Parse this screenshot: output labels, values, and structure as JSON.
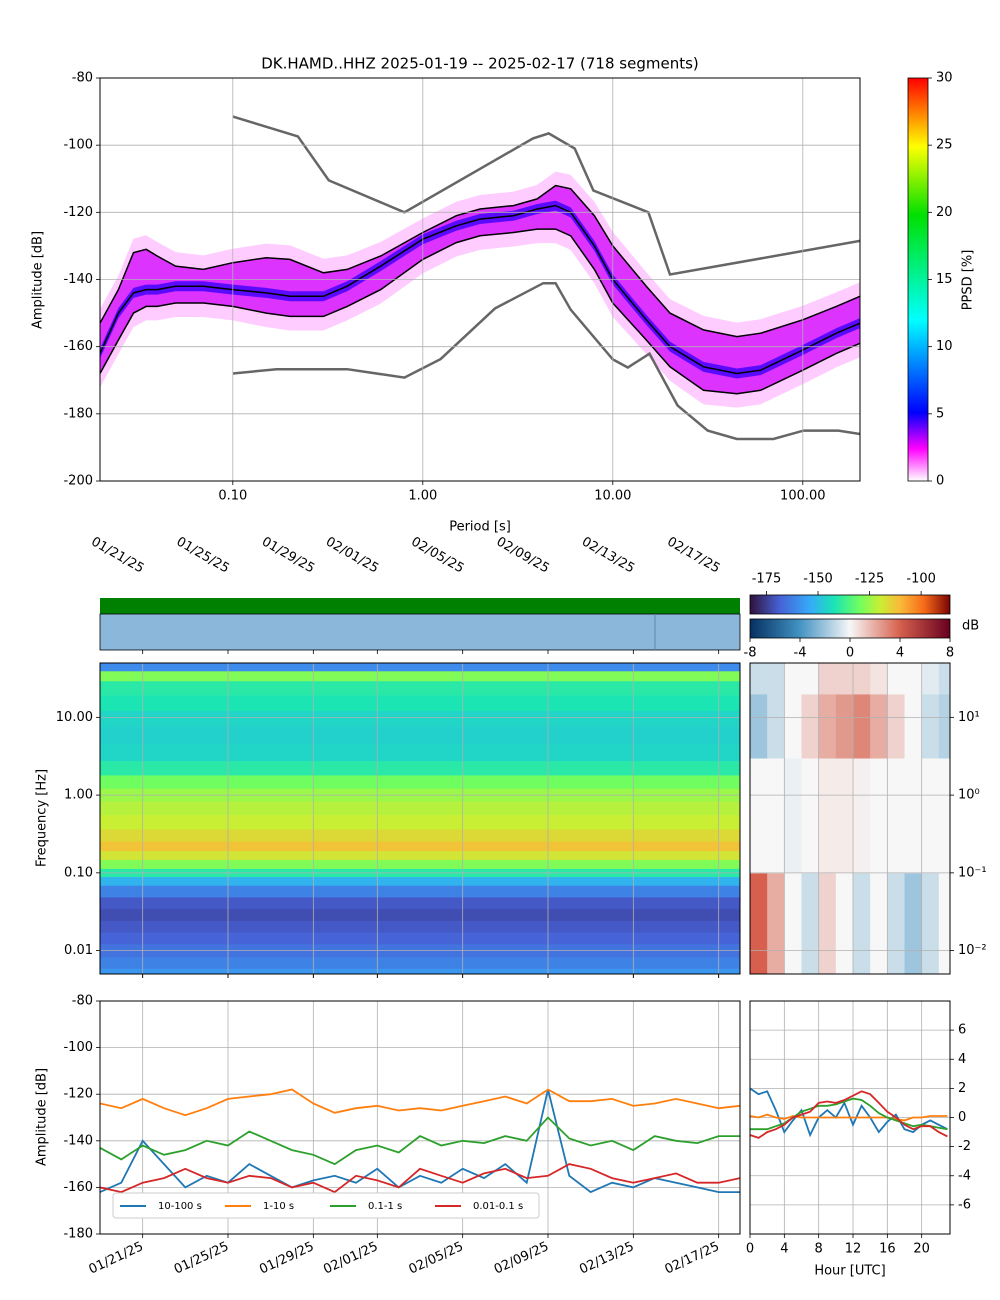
{
  "chart_data": [
    {
      "type": "ppsd",
      "title": "DK.HAMD..HHZ   2025-01-19 -- 2025-02-17  (718 segments)",
      "xlabel": "Period [s]",
      "ylabel": "Amplitude [dB]",
      "xscale": "log",
      "xlim": [
        0.02,
        200
      ],
      "xticks": [
        {
          "value": 0.1,
          "label": "0.10"
        },
        {
          "value": 1,
          "label": "1.00"
        },
        {
          "value": 10,
          "label": "10.00"
        },
        {
          "value": 100,
          "label": "100.00"
        }
      ],
      "ylim": [
        -200,
        -80
      ],
      "yticks": [
        -200,
        -180,
        -160,
        -140,
        -120,
        -100,
        -80
      ],
      "grid": true,
      "colorbar": {
        "label": "PPSD [%]",
        "lim": [
          0,
          30
        ],
        "ticks": [
          0,
          5,
          10,
          15,
          20,
          25,
          30
        ]
      },
      "x": [
        0.02,
        0.025,
        0.03,
        0.035,
        0.04,
        0.05,
        0.07,
        0.1,
        0.15,
        0.2,
        0.3,
        0.4,
        0.6,
        1,
        1.5,
        2,
        3,
        4,
        5,
        6,
        8,
        10,
        15,
        20,
        30,
        45,
        60,
        100,
        150,
        200
      ],
      "series": [
        {
          "color": "#000000",
          "values": [
            -153,
            -143,
            -132,
            -131,
            -133,
            -136,
            -137,
            -135,
            -133.5,
            -134,
            -138,
            -137,
            -133,
            -126,
            -121,
            -119,
            -118,
            -116,
            -112,
            -113,
            -121,
            -130,
            -142,
            -150,
            -155,
            -157,
            -156,
            -152,
            -148,
            -145
          ]
        },
        {
          "color": "#000000",
          "values": [
            -162,
            -150,
            -144,
            -143,
            -143,
            -142,
            -142,
            -143,
            -144,
            -145,
            -145,
            -142,
            -136,
            -128,
            -124,
            -122,
            -121,
            -119,
            -118,
            -120,
            -130,
            -140,
            -152,
            -160,
            -166,
            -168,
            -167,
            -161,
            -156,
            -153
          ]
        },
        {
          "color": "#000000",
          "values": [
            -168,
            -158,
            -150,
            -148,
            -148,
            -147,
            -147,
            -148,
            -150,
            -151,
            -151,
            -148,
            -143,
            -134,
            -129,
            -127,
            -126,
            -125,
            -125,
            -127,
            -137,
            -147,
            -158,
            -166,
            -173,
            -174,
            -173,
            -167,
            -162,
            -159
          ]
        }
      ],
      "models": [
        {
          "color": "#666666",
          "x": [
            0.1,
            0.22,
            0.32,
            0.8,
            3.8,
            4.6,
            6.3,
            7.9,
            15.4,
            20,
            200
          ],
          "values": [
            -91.5,
            -97.4,
            -110.5,
            -120,
            -98,
            -96.5,
            -101,
            -113.5,
            -120,
            -138.5,
            -128.5
          ]
        },
        {
          "color": "#666666",
          "x": [
            0.1,
            0.17,
            0.4,
            0.8,
            1.24,
            2.4,
            4.3,
            5,
            6,
            10,
            12,
            15.6,
            21.9,
            31.6,
            45,
            70,
            101,
            154,
            200
          ],
          "values": [
            -168,
            -166.7,
            -166.7,
            -169.2,
            -163.7,
            -148.6,
            -141.1,
            -141.1,
            -149,
            -163.8,
            -166.2,
            -162.1,
            -177.5,
            -185,
            -187.5,
            -187.5,
            -185,
            -185,
            -186
          ]
        }
      ]
    },
    {
      "type": "heatmap",
      "ylabel": "Frequency [Hz]",
      "yscale": "log",
      "ylim": [
        0.005,
        50
      ],
      "yticks": [
        {
          "value": 0.01,
          "label": "0.01"
        },
        {
          "value": 0.1,
          "label": "0.10"
        },
        {
          "value": 1,
          "label": "1.00"
        },
        {
          "value": 10,
          "label": "10.00"
        }
      ],
      "xlim": [
        "2025-01-19",
        "2025-02-18"
      ],
      "xticks": [
        {
          "value": "2025-01-21",
          "label": "01/21/25"
        },
        {
          "value": "2025-01-25",
          "label": "01/25/25"
        },
        {
          "value": "2025-01-29",
          "label": "01/29/25"
        },
        {
          "value": "2025-02-01",
          "label": "02/01/25"
        },
        {
          "value": "2025-02-05",
          "label": "02/05/25"
        },
        {
          "value": "2025-02-09",
          "label": "02/09/25"
        },
        {
          "value": "2025-02-13",
          "label": "02/13/25"
        },
        {
          "value": "2025-02-17",
          "label": "02/17/25"
        }
      ],
      "colorbar": {
        "lim": [
          -183,
          -86
        ],
        "ticks": [
          -175,
          -150,
          -125,
          -100
        ]
      },
      "frequencies": [
        0.005,
        0.007,
        0.01,
        0.015,
        0.02,
        0.03,
        0.04,
        0.06,
        0.08,
        0.1,
        0.13,
        0.17,
        0.22,
        0.3,
        0.45,
        0.7,
        1,
        1.5,
        2.2,
        3.5,
        6,
        10,
        15,
        25,
        35,
        45
      ],
      "values": [
        -158,
        -162,
        -165,
        -168,
        -170,
        -172,
        -170,
        -162,
        -152,
        -140,
        -128,
        -118,
        -112,
        -116,
        -120,
        -122,
        -125,
        -130,
        -140,
        -145,
        -146,
        -145,
        -142,
        -140,
        -128,
        -160
      ]
    },
    {
      "type": "heatmap",
      "yscale": "log",
      "ylim": [
        0.005,
        50
      ],
      "yticks": [
        {
          "value": 0.01,
          "label": "10⁻²"
        },
        {
          "value": 0.1,
          "label": "10⁻¹"
        },
        {
          "value": 1,
          "label": "10⁰"
        },
        {
          "value": 10,
          "label": "10¹"
        }
      ],
      "xlim": [
        0,
        23.3
      ],
      "hour_edges": [
        0,
        2,
        4,
        6,
        8,
        10,
        12,
        14,
        16,
        18,
        20,
        22,
        24
      ],
      "freq_edges": [
        0.005,
        0.1,
        3,
        20,
        50
      ],
      "colorbar": {
        "label": "dB",
        "lim": [
          -8,
          8
        ],
        "ticks": [
          -8,
          -4,
          0,
          4,
          8
        ]
      },
      "values": [
        [
          4,
          2,
          0,
          -1,
          1,
          0,
          -1,
          0,
          -1,
          -2,
          -1,
          0
        ],
        [
          0,
          0,
          -0.3,
          0,
          0.3,
          0.3,
          0.2,
          0,
          0,
          0,
          0,
          0
        ],
        [
          -2,
          -1,
          0,
          1,
          2,
          2.5,
          3,
          2,
          1,
          0,
          -1,
          -1.5
        ],
        [
          -1,
          -1,
          0,
          0,
          1,
          1,
          1,
          0.5,
          0,
          0,
          -0.5,
          -1
        ]
      ]
    },
    {
      "type": "line",
      "ylabel": "Amplitude [dB]",
      "ylim": [
        -180,
        -80
      ],
      "yticks": [
        -180,
        -160,
        -140,
        -120,
        -100,
        -80
      ],
      "grid": true,
      "legend": "lower left",
      "xlim": [
        "2025-01-19",
        "2025-02-18"
      ],
      "xticks": [
        {
          "value": "2025-01-21",
          "label": "01/21/25"
        },
        {
          "value": "2025-01-25",
          "label": "01/25/25"
        },
        {
          "value": "2025-01-29",
          "label": "01/29/25"
        },
        {
          "value": "2025-02-01",
          "label": "02/01/25"
        },
        {
          "value": "2025-02-05",
          "label": "02/05/25"
        },
        {
          "value": "2025-02-09",
          "label": "02/09/25"
        },
        {
          "value": "2025-02-13",
          "label": "02/13/25"
        },
        {
          "value": "2025-02-17",
          "label": "02/17/25"
        }
      ],
      "x": [
        "2025-01-19",
        "2025-01-20",
        "2025-01-21",
        "2025-01-22",
        "2025-01-23",
        "2025-01-24",
        "2025-01-25",
        "2025-01-26",
        "2025-01-27",
        "2025-01-28",
        "2025-01-29",
        "2025-01-30",
        "2025-01-31",
        "2025-02-01",
        "2025-02-02",
        "2025-02-03",
        "2025-02-04",
        "2025-02-05",
        "2025-02-06",
        "2025-02-07",
        "2025-02-08",
        "2025-02-09",
        "2025-02-10",
        "2025-02-11",
        "2025-02-12",
        "2025-02-13",
        "2025-02-14",
        "2025-02-15",
        "2025-02-16",
        "2025-02-17",
        "2025-02-18"
      ],
      "series": [
        {
          "name": "10-100 s",
          "color": "#1f77b4",
          "values": [
            -162,
            -158,
            -140,
            -150,
            -160,
            -155,
            -158,
            -150,
            -155,
            -160,
            -157,
            -155,
            -158,
            -152,
            -160,
            -155,
            -158,
            -152,
            -156,
            -150,
            -158,
            -118,
            -155,
            -162,
            -158,
            -160,
            -156,
            -158,
            -160,
            -162,
            -162
          ]
        },
        {
          "name": "1-10 s",
          "color": "#ff7f0e",
          "values": [
            -124,
            -126,
            -122,
            -126,
            -129,
            -126,
            -122,
            -121,
            -120,
            -118,
            -124,
            -128,
            -126,
            -125,
            -127,
            -126,
            -127,
            -125,
            -123,
            -121,
            -124,
            -118,
            -123,
            -123,
            -122,
            -125,
            -124,
            -122,
            -124,
            -126,
            -125
          ]
        },
        {
          "name": "0.1-1 s",
          "color": "#2ca02c",
          "values": [
            -143,
            -148,
            -142,
            -146,
            -144,
            -140,
            -142,
            -136,
            -140,
            -144,
            -146,
            -150,
            -144,
            -142,
            -145,
            -138,
            -142,
            -140,
            -141,
            -138,
            -140,
            -130,
            -139,
            -142,
            -140,
            -144,
            -138,
            -140,
            -141,
            -138,
            -138
          ]
        },
        {
          "name": "0.01-0.1 s",
          "color": "#d62728",
          "values": [
            -160,
            -162,
            -158,
            -156,
            -152,
            -156,
            -158,
            -155,
            -156,
            -160,
            -158,
            -162,
            -155,
            -157,
            -160,
            -152,
            -155,
            -158,
            -154,
            -152,
            -156,
            -155,
            -150,
            -152,
            -156,
            -158,
            -156,
            -154,
            -158,
            -158,
            -156
          ]
        }
      ]
    },
    {
      "type": "line",
      "xlabel": "Hour [UTC]",
      "xlim": [
        0,
        23.3
      ],
      "xticks": [
        0,
        4,
        8,
        12,
        16,
        20
      ],
      "ylim": [
        -8,
        8
      ],
      "yticks": [
        -6,
        -4,
        -2,
        0,
        2,
        4,
        6
      ],
      "grid": true,
      "x": [
        0,
        1,
        2,
        3,
        4,
        5,
        6,
        7,
        8,
        9,
        10,
        11,
        12,
        13,
        14,
        15,
        16,
        17,
        18,
        19,
        20,
        21,
        22,
        23
      ],
      "series": [
        {
          "color": "#1f77b4",
          "values": [
            2,
            1.6,
            1.8,
            0.5,
            -1,
            -0.2,
            0.5,
            -1.2,
            0,
            0.5,
            0,
            1,
            -0.5,
            0.8,
            0,
            -1,
            -0.3,
            0.2,
            -0.8,
            -1,
            -0.5,
            -0.2,
            -0.5,
            -0.8
          ]
        },
        {
          "color": "#ff7f0e",
          "values": [
            0.1,
            0,
            0.2,
            0,
            -0.1,
            0.1,
            0,
            0,
            0,
            0,
            0,
            0,
            0,
            0,
            0,
            0,
            0,
            -0.1,
            -0.2,
            0,
            0,
            0.1,
            0.1,
            0.1
          ]
        },
        {
          "color": "#2ca02c",
          "values": [
            -0.8,
            -0.8,
            -0.8,
            -0.6,
            -0.4,
            0,
            0.4,
            0.6,
            0.8,
            0.8,
            0.9,
            1.1,
            1.3,
            1.2,
            0.8,
            0.3,
            0,
            -0.2,
            -0.4,
            -0.6,
            -0.5,
            -0.6,
            -0.7,
            -0.8
          ]
        },
        {
          "color": "#d62728",
          "values": [
            -1.2,
            -1.4,
            -1,
            -0.8,
            -0.5,
            0,
            0.2,
            0.4,
            1,
            1.1,
            1,
            1.2,
            1.5,
            1.8,
            1.6,
            1,
            0.4,
            0,
            -0.5,
            -0.8,
            -0.6,
            -0.6,
            -1,
            -1.3
          ]
        }
      ]
    }
  ]
}
